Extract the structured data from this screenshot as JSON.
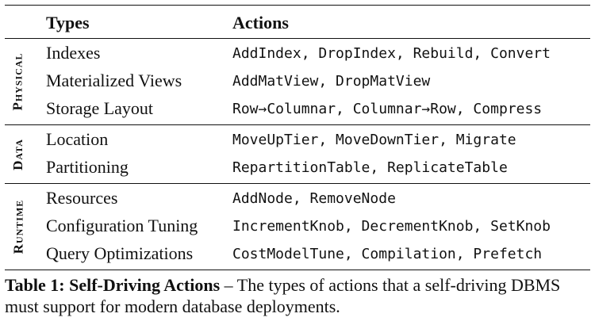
{
  "table": {
    "headers": {
      "types": "Types",
      "actions": "Actions"
    },
    "groups": [
      {
        "label": "Physical",
        "rows": [
          {
            "type": "Indexes",
            "actions": "AddIndex, DropIndex, Rebuild, Convert"
          },
          {
            "type": "Materialized Views",
            "actions": "AddMatView, DropMatView"
          },
          {
            "type": "Storage Layout",
            "actions": "Row→Columnar, Columnar→Row, Compress"
          }
        ]
      },
      {
        "label": "Data",
        "rows": [
          {
            "type": "Location",
            "actions": "MoveUpTier, MoveDownTier, Migrate"
          },
          {
            "type": "Partitioning",
            "actions": "RepartitionTable, ReplicateTable"
          }
        ]
      },
      {
        "label": "Runtime",
        "rows": [
          {
            "type": "Resources",
            "actions": "AddNode, RemoveNode"
          },
          {
            "type": "Configuration Tuning",
            "actions": "IncrementKnob, DecrementKnob, SetKnob"
          },
          {
            "type": "Query Optimizations",
            "actions": "CostModelTune, Compilation, Prefetch"
          }
        ]
      }
    ]
  },
  "caption": {
    "label": "Table 1: Self-Driving Actions",
    "text": " – The types of actions that a self-driving DBMS must support for modern database deployments."
  }
}
